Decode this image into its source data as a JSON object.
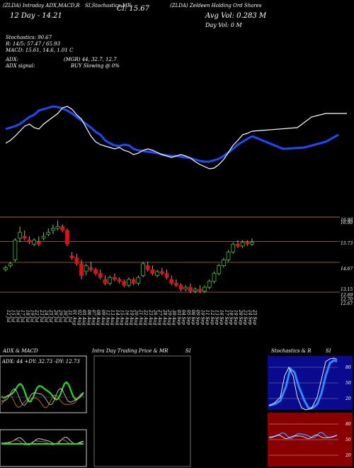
{
  "header": {
    "line1_left": "(ZLDA) Intraday ADX,MACD,R",
    "line1_mid": "SI,Stochastics,MR",
    "line1_cl": "Cl: 15.67",
    "line1_right": "(ZLDA) Zeldeen Holding Ord Shares",
    "line2_left": "12 Day - 14.21",
    "line2_right": "Avg Vol: 0.283 M",
    "line3_right": "Day Vol: 0   M"
  },
  "stats": {
    "stochastics": "Stochastics: 90.67",
    "rsi": "R: 14/5: 57.47 / 65.93",
    "macd": "MACD: 15.61, 14.6, 1.01 C",
    "adx": "ADX:",
    "adx_values": "(MGR) 44, 32.7, 12.7",
    "adx_signal_label": "ADX signal:",
    "adx_signal": "BUY Slowing @ 0%"
  },
  "chart_data": {
    "type": "candlestick",
    "x": [
      "12 Jul",
      "15 Jul",
      "16 Jul",
      "17 Jul",
      "18 Jul",
      "19 Jul",
      "22 Jul",
      "23 Jul",
      "24 Jul",
      "25 Jul",
      "26 Jul",
      "29 Jul",
      "30 Jul",
      "31 Jul",
      "01 Aug",
      "02 Aug",
      "05 Aug",
      "06 Aug",
      "07 Aug",
      "08 Aug",
      "09 Aug",
      "12 Aug",
      "13 Aug",
      "14 Aug",
      "15 Aug",
      "16 Aug",
      "19 Aug",
      "20 Aug",
      "21 Aug",
      "22 Aug",
      "23 Aug",
      "26 Aug",
      "27 Aug",
      "28 Aug",
      "29 Aug",
      "30 Aug",
      "03 Sep",
      "04 Sep",
      "05 Sep",
      "06 Sep",
      "09 Sep",
      "10 Sep",
      "11 Sep",
      "12 Sep",
      "13 Sep",
      "16 Sep",
      "17 Sep",
      "18 Sep",
      "19 Sep",
      "20 Sep",
      "23 Sep",
      "24 Sep",
      "25 Sep"
    ],
    "price_levels": [
      "16.98",
      "16.90",
      "15.73",
      "14.67",
      "13.15",
      "12.69",
      "12.70",
      "12.67"
    ],
    "ohlc": [
      [
        14.3,
        14.5,
        14.2,
        14.4
      ],
      [
        14.5,
        14.7,
        14.4,
        14.6
      ],
      [
        14.8,
        15.9,
        14.7,
        15.8
      ],
      [
        15.9,
        16.5,
        15.7,
        16.2
      ],
      [
        16.0,
        16.3,
        15.8,
        15.9
      ],
      [
        15.8,
        16.0,
        15.6,
        15.7
      ],
      [
        15.6,
        15.9,
        15.5,
        15.8
      ],
      [
        15.7,
        16.0,
        15.5,
        15.6
      ],
      [
        15.9,
        16.2,
        15.8,
        16.0
      ],
      [
        16.1,
        16.4,
        16.0,
        16.2
      ],
      [
        16.3,
        16.6,
        16.1,
        16.4
      ],
      [
        16.4,
        16.8,
        16.3,
        16.5
      ],
      [
        16.5,
        16.6,
        16.2,
        16.3
      ],
      [
        16.3,
        16.4,
        15.5,
        15.6
      ],
      [
        15.0,
        15.2,
        14.8,
        14.9
      ],
      [
        14.9,
        15.1,
        14.5,
        14.6
      ],
      [
        14.6,
        14.8,
        13.8,
        14.0
      ],
      [
        14.2,
        14.6,
        14.0,
        14.5
      ],
      [
        14.4,
        14.7,
        14.2,
        14.3
      ],
      [
        14.3,
        14.4,
        14.0,
        14.1
      ],
      [
        14.1,
        14.3,
        13.8,
        13.9
      ],
      [
        13.8,
        14.0,
        13.5,
        13.6
      ],
      [
        13.6,
        14.0,
        13.5,
        13.9
      ],
      [
        13.9,
        14.1,
        13.7,
        13.8
      ],
      [
        13.8,
        13.9,
        13.6,
        13.7
      ],
      [
        13.7,
        13.8,
        13.4,
        13.5
      ],
      [
        13.5,
        13.9,
        13.4,
        13.8
      ],
      [
        13.8,
        13.9,
        13.5,
        13.6
      ],
      [
        13.6,
        14.0,
        13.5,
        13.9
      ],
      [
        14.0,
        14.7,
        13.9,
        14.6
      ],
      [
        14.5,
        14.7,
        14.2,
        14.3
      ],
      [
        14.3,
        14.5,
        14.0,
        14.1
      ],
      [
        14.0,
        14.3,
        13.9,
        14.2
      ],
      [
        14.2,
        14.4,
        14.0,
        14.1
      ],
      [
        14.1,
        14.3,
        13.8,
        13.9
      ],
      [
        13.8,
        14.0,
        13.5,
        13.6
      ],
      [
        13.6,
        13.8,
        13.4,
        13.5
      ],
      [
        13.5,
        13.6,
        13.2,
        13.3
      ],
      [
        13.3,
        13.5,
        13.2,
        13.4
      ],
      [
        13.4,
        13.6,
        13.1,
        13.2
      ],
      [
        13.2,
        13.4,
        13.1,
        13.3
      ],
      [
        13.3,
        13.5,
        13.1,
        13.2
      ],
      [
        13.2,
        13.5,
        13.1,
        13.4
      ],
      [
        13.4,
        13.8,
        13.3,
        13.7
      ],
      [
        13.7,
        14.2,
        13.6,
        14.1
      ],
      [
        14.1,
        14.6,
        14.0,
        14.5
      ],
      [
        14.5,
        14.9,
        14.4,
        14.8
      ],
      [
        14.8,
        15.3,
        14.7,
        15.2
      ],
      [
        15.2,
        15.7,
        15.1,
        15.6
      ],
      [
        15.6,
        15.8,
        15.4,
        15.5
      ],
      [
        15.5,
        15.8,
        15.4,
        15.7
      ],
      [
        15.7,
        15.8,
        15.5,
        15.6
      ],
      [
        15.6,
        15.9,
        15.5,
        15.7
      ]
    ],
    "mrs_line": [
      62,
      60,
      58,
      55,
      50,
      45,
      42,
      36,
      34,
      32,
      30,
      31,
      33,
      36,
      40,
      45,
      50,
      55,
      60,
      66,
      70,
      78,
      82,
      85,
      86,
      84,
      85,
      90,
      92,
      93,
      94,
      95,
      96,
      98,
      99,
      100,
      100,
      101,
      102,
      103,
      105,
      107,
      108,
      108,
      106,
      104,
      100,
      95,
      90,
      84,
      80,
      76,
      72
    ],
    "price_line": [
      82,
      78,
      72,
      65,
      58,
      55,
      60,
      62,
      55,
      50,
      45,
      40,
      32,
      30,
      34,
      42,
      48,
      60,
      72,
      80,
      84,
      86,
      88,
      90,
      88,
      92,
      94,
      98,
      96,
      92,
      90,
      92,
      95,
      98,
      100,
      102,
      100,
      98,
      100,
      103,
      108,
      112,
      115,
      118,
      117,
      112,
      105,
      95,
      85,
      78,
      70,
      68,
      65
    ],
    "panels": {
      "adx_macd_title": "ADX  & MACD",
      "adx_legend": "ADX: 44  +DY: 32.73  -DY: 12.73",
      "intraday_title": "Intra  Day Trading Price  & MR",
      "intraday_si": "SI",
      "stoch_title": "Stochastics & R",
      "stoch_si": "SI",
      "stoch_levels": [
        "80",
        "50",
        "20"
      ],
      "rsi_levels": [
        "80",
        "50",
        "20"
      ],
      "adx_levels": [
        "25",
        "20",
        "15"
      ]
    }
  }
}
